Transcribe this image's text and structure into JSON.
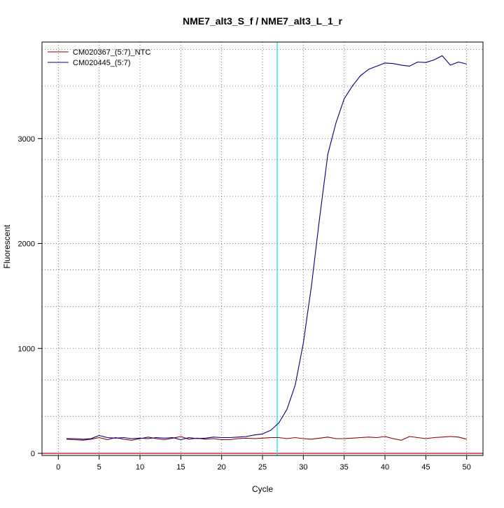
{
  "chart_data": {
    "type": "line",
    "title": "NME7_alt3_S_f / NME7_alt3_L_1_r",
    "xlabel": "Cycle",
    "ylabel": "Fluorescent",
    "xlim": [
      -2,
      52
    ],
    "ylim": [
      -20,
      3920
    ],
    "x_ticks": [
      0,
      5,
      10,
      15,
      20,
      25,
      30,
      35,
      40,
      45,
      50
    ],
    "x_tick_labels": [
      "0",
      "5",
      "10",
      "15",
      "20",
      "25",
      "30",
      "35",
      "40",
      "45",
      "50"
    ],
    "y_ticks": [
      0,
      1000,
      2000,
      3000
    ],
    "y_tick_labels": [
      "0",
      "1000",
      "2000",
      "3000"
    ],
    "x_grid": [
      0,
      5,
      10,
      15,
      20,
      25,
      30,
      35,
      40,
      45,
      50
    ],
    "y_grid": [
      0,
      350,
      700,
      1000,
      1400,
      1750,
      2000,
      2450,
      2800,
      3000,
      3500,
      3850
    ],
    "grid": true,
    "legend_position": "top-left",
    "threshold_line": {
      "y": 0,
      "color": "#cc0000"
    },
    "cycle_marker": {
      "x": 26.8,
      "color": "#00e5ee"
    },
    "x": [
      1,
      2,
      3,
      4,
      5,
      6,
      7,
      8,
      9,
      10,
      11,
      12,
      13,
      14,
      15,
      16,
      17,
      18,
      19,
      20,
      21,
      22,
      23,
      24,
      25,
      26,
      27,
      28,
      29,
      30,
      31,
      32,
      33,
      34,
      35,
      36,
      37,
      38,
      39,
      40,
      41,
      42,
      43,
      44,
      45,
      46,
      47,
      48,
      49,
      50
    ],
    "series": [
      {
        "name": "CM020367_(5:7)_NTC",
        "color": "#8b0000",
        "values": [
          135,
          130,
          125,
          135,
          150,
          130,
          150,
          135,
          125,
          140,
          155,
          140,
          130,
          145,
          160,
          135,
          145,
          135,
          140,
          130,
          130,
          140,
          145,
          140,
          145,
          150,
          150,
          140,
          150,
          140,
          135,
          145,
          155,
          140,
          140,
          145,
          150,
          155,
          150,
          160,
          140,
          125,
          160,
          150,
          140,
          150,
          155,
          160,
          155,
          135
        ]
      },
      {
        "name": "CM020445_(5:7)",
        "color": "#000080",
        "values": [
          140,
          140,
          135,
          140,
          170,
          150,
          145,
          150,
          140,
          145,
          140,
          150,
          145,
          150,
          130,
          150,
          140,
          145,
          155,
          150,
          150,
          155,
          160,
          175,
          185,
          220,
          290,
          420,
          650,
          1050,
          1600,
          2250,
          2850,
          3150,
          3380,
          3500,
          3600,
          3660,
          3690,
          3720,
          3715,
          3700,
          3690,
          3730,
          3725,
          3750,
          3790,
          3700,
          3730,
          3710
        ]
      }
    ]
  }
}
